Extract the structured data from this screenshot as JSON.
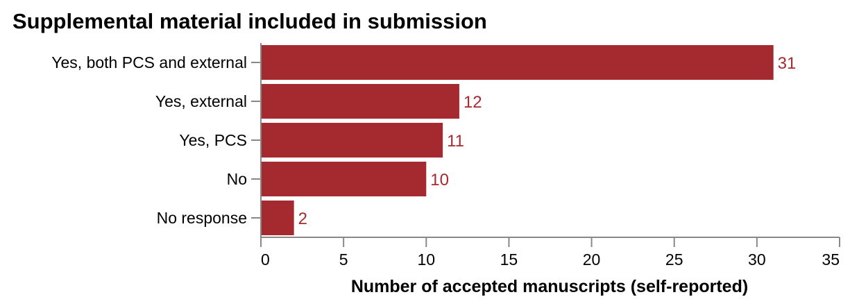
{
  "chart_data": {
    "type": "bar",
    "orientation": "horizontal",
    "title": "Supplemental material included in submission",
    "xlabel": "Number of accepted manuscripts (self-reported)",
    "ylabel": "",
    "categories": [
      "Yes, both PCS and external",
      "Yes, external",
      "Yes, PCS",
      "No",
      "No response"
    ],
    "values": [
      31,
      12,
      11,
      10,
      2
    ],
    "data_labels": [
      "31",
      "12",
      "11",
      "10",
      "2"
    ],
    "xlim": [
      0,
      35
    ],
    "x_ticks": [
      0,
      5,
      10,
      15,
      20,
      25,
      30,
      35
    ],
    "x_tick_labels": [
      "0",
      "5",
      "10",
      "15",
      "20",
      "25",
      "30",
      "35"
    ],
    "grid": false,
    "legend": "none",
    "colors": {
      "bar": "#a52a2f",
      "data_label": "#a52a2f",
      "axis": "#888888",
      "text": "#000000"
    }
  }
}
